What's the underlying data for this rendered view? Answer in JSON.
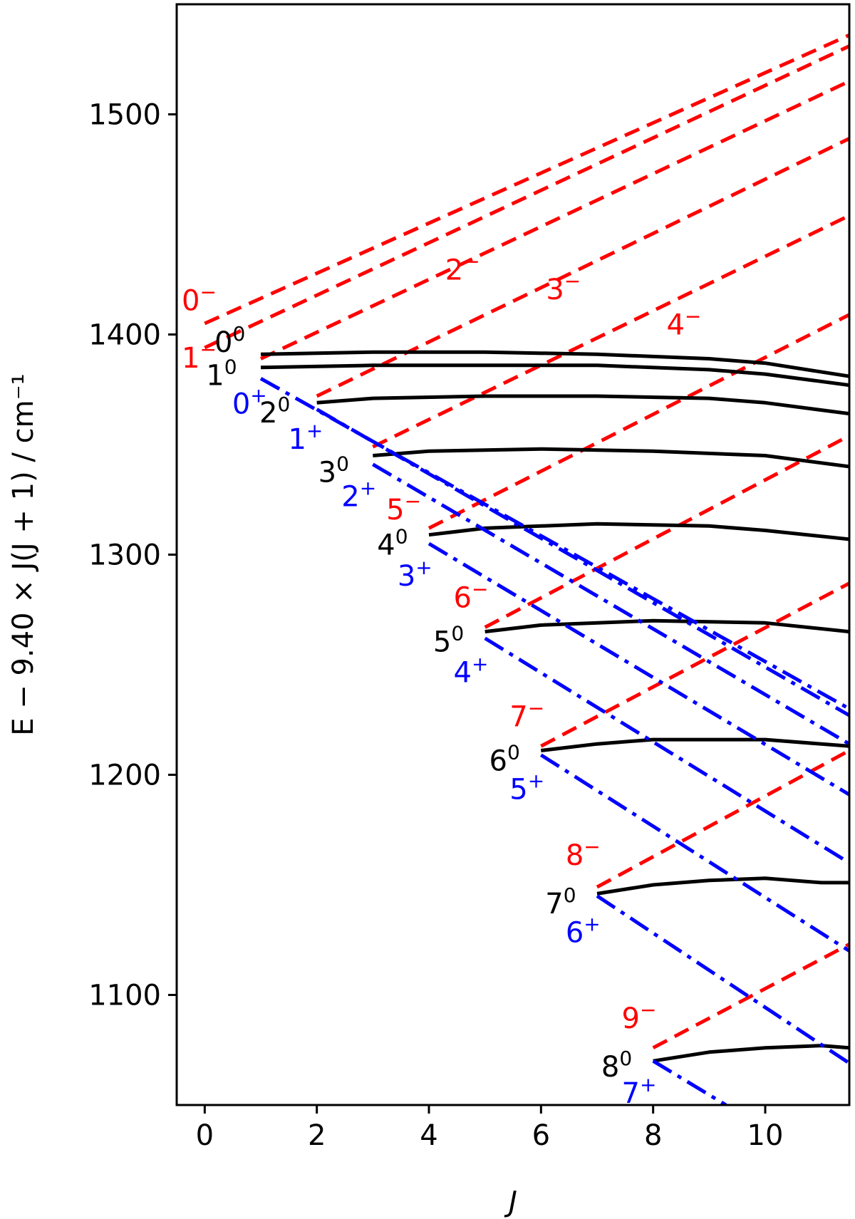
{
  "chart_data": {
    "type": "line",
    "xlabel": "J",
    "ylabel": "E − 9.40 × J(J + 1) / cm⁻¹",
    "xlim": [
      -0.5,
      11.5
    ],
    "ylim": [
      1050,
      1550
    ],
    "xticks": [
      0,
      2,
      4,
      6,
      8,
      10
    ],
    "yticks": [
      1100,
      1200,
      1300,
      1400,
      1500
    ],
    "x": [
      0,
      1,
      2,
      3,
      4,
      5,
      6,
      7,
      8,
      9,
      10,
      11,
      11.5
    ],
    "colors": {
      "zero": "#000000",
      "minus": "#ff0000",
      "plus": "#0000ff"
    },
    "series": [
      {
        "name": "0⁻",
        "family": "minus",
        "style": "dashed",
        "x": [
          0,
          11.5
        ],
        "y": [
          1405,
          1536
        ]
      },
      {
        "name": "1⁻",
        "family": "minus",
        "style": "dashed",
        "x": [
          0,
          11.5
        ],
        "y": [
          1394,
          1531
        ]
      },
      {
        "name": "2⁻",
        "family": "minus",
        "style": "dashed",
        "x": [
          1,
          11.5
        ],
        "y": [
          1389,
          1515
        ]
      },
      {
        "name": "3⁻",
        "family": "minus",
        "style": "dashed",
        "x": [
          2,
          11.5
        ],
        "y": [
          1372,
          1489
        ]
      },
      {
        "name": "4⁻",
        "family": "minus",
        "style": "dashed",
        "x": [
          3,
          11.5
        ],
        "y": [
          1349,
          1454
        ]
      },
      {
        "name": "5⁻",
        "family": "minus",
        "style": "dashed",
        "x": [
          4,
          11.5
        ],
        "y": [
          1312,
          1409
        ]
      },
      {
        "name": "6⁻",
        "family": "minus",
        "style": "dashed",
        "x": [
          5,
          11.5
        ],
        "y": [
          1267,
          1354
        ]
      },
      {
        "name": "7⁻",
        "family": "minus",
        "style": "dashed",
        "x": [
          6,
          11.5
        ],
        "y": [
          1213,
          1287
        ]
      },
      {
        "name": "8⁻",
        "family": "minus",
        "style": "dashed",
        "x": [
          7,
          11.5
        ],
        "y": [
          1149,
          1211
        ]
      },
      {
        "name": "9⁻",
        "family": "minus",
        "style": "dashed",
        "x": [
          8,
          11.5
        ],
        "y": [
          1076,
          1123
        ]
      },
      {
        "name": "0⁰",
        "family": "zero",
        "style": "solid",
        "x": [
          1,
          3,
          5,
          7,
          9,
          10,
          11.5
        ],
        "y": [
          1391,
          1392,
          1392,
          1391,
          1389,
          1387,
          1381
        ]
      },
      {
        "name": "1⁰",
        "family": "zero",
        "style": "solid",
        "x": [
          1,
          3,
          5,
          7,
          9,
          10,
          11.5
        ],
        "y": [
          1385,
          1386,
          1386,
          1386,
          1384,
          1382,
          1377
        ]
      },
      {
        "name": "2⁰",
        "family": "zero",
        "style": "solid",
        "x": [
          2,
          3,
          5,
          7,
          9,
          10,
          11.5
        ],
        "y": [
          1369,
          1371,
          1372,
          1372,
          1371,
          1369,
          1364
        ]
      },
      {
        "name": "3⁰",
        "family": "zero",
        "style": "solid",
        "x": [
          3,
          4,
          6,
          8,
          10,
          11.5
        ],
        "y": [
          1345,
          1347,
          1348,
          1347,
          1345,
          1340
        ]
      },
      {
        "name": "4⁰",
        "family": "zero",
        "style": "solid",
        "x": [
          4,
          5,
          7,
          9,
          10,
          11.5
        ],
        "y": [
          1309,
          1312,
          1314,
          1313,
          1311,
          1307
        ]
      },
      {
        "name": "5⁰",
        "family": "zero",
        "style": "solid",
        "x": [
          5,
          6,
          8,
          10,
          11.5
        ],
        "y": [
          1265,
          1268,
          1270,
          1269,
          1265
        ]
      },
      {
        "name": "6⁰",
        "family": "zero",
        "style": "solid",
        "x": [
          6,
          7,
          8,
          9,
          10,
          11.5
        ],
        "y": [
          1211,
          1214,
          1216,
          1216,
          1216,
          1213
        ]
      },
      {
        "name": "7⁰",
        "family": "zero",
        "style": "solid",
        "x": [
          7,
          8,
          9,
          10,
          11,
          11.5
        ],
        "y": [
          1146,
          1150,
          1152,
          1153,
          1151,
          1151
        ]
      },
      {
        "name": "8⁰",
        "family": "zero",
        "style": "solid",
        "x": [
          8,
          9,
          10,
          11,
          11.5
        ],
        "y": [
          1070,
          1074,
          1076,
          1077,
          1076
        ]
      },
      {
        "name": "0⁺",
        "family": "plus",
        "style": "dashdot",
        "x": [
          1,
          11.5
        ],
        "y": [
          1380,
          1230
        ]
      },
      {
        "name": "1⁺",
        "family": "plus",
        "style": "dashdot",
        "x": [
          2,
          11.5
        ],
        "y": [
          1366,
          1227
        ]
      },
      {
        "name": "2⁺",
        "family": "plus",
        "style": "dashdot",
        "x": [
          3,
          11.5
        ],
        "y": [
          1341,
          1214
        ]
      },
      {
        "name": "3⁺",
        "family": "plus",
        "style": "dashdot",
        "x": [
          4,
          11.5
        ],
        "y": [
          1305,
          1191
        ]
      },
      {
        "name": "4⁺",
        "family": "plus",
        "style": "dashdot",
        "x": [
          5,
          11.5
        ],
        "y": [
          1262,
          1160
        ]
      },
      {
        "name": "5⁺",
        "family": "plus",
        "style": "dashdot",
        "x": [
          6,
          11.5
        ],
        "y": [
          1209,
          1120
        ]
      },
      {
        "name": "6⁺",
        "family": "plus",
        "style": "dashdot",
        "x": [
          7,
          11.5
        ],
        "y": [
          1145,
          1069
        ]
      },
      {
        "name": "7⁺",
        "family": "plus",
        "style": "dashdot",
        "x": [
          8,
          9.3
        ],
        "y": [
          1070,
          1050
        ]
      }
    ],
    "labels": [
      {
        "base": "0",
        "sup": "−",
        "family": "minus",
        "at": [
          -0.1,
          1411
        ]
      },
      {
        "base": "1",
        "sup": "−",
        "family": "minus",
        "at": [
          -0.1,
          1385
        ]
      },
      {
        "base": "2",
        "sup": "−",
        "family": "minus",
        "at": [
          4.6,
          1425
        ]
      },
      {
        "base": "3",
        "sup": "−",
        "family": "minus",
        "at": [
          6.4,
          1416
        ]
      },
      {
        "base": "4",
        "sup": "−",
        "family": "minus",
        "at": [
          8.55,
          1400
        ]
      },
      {
        "base": "5",
        "sup": "−",
        "family": "minus",
        "at": [
          3.55,
          1316
        ]
      },
      {
        "base": "6",
        "sup": "−",
        "family": "minus",
        "at": [
          4.75,
          1276
        ]
      },
      {
        "base": "7",
        "sup": "−",
        "family": "minus",
        "at": [
          5.75,
          1222
        ]
      },
      {
        "base": "8",
        "sup": "−",
        "family": "minus",
        "at": [
          6.75,
          1159
        ]
      },
      {
        "base": "9",
        "sup": "−",
        "family": "minus",
        "at": [
          7.75,
          1085
        ]
      },
      {
        "base": "0",
        "sup": "0",
        "family": "zero",
        "at": [
          0.45,
          1392
        ]
      },
      {
        "base": "1",
        "sup": "0",
        "family": "zero",
        "at": [
          0.3,
          1377
        ]
      },
      {
        "base": "2",
        "sup": "0",
        "family": "zero",
        "at": [
          1.25,
          1360
        ]
      },
      {
        "base": "3",
        "sup": "0",
        "family": "zero",
        "at": [
          2.3,
          1333
        ]
      },
      {
        "base": "4",
        "sup": "0",
        "family": "zero",
        "at": [
          3.35,
          1300
        ]
      },
      {
        "base": "5",
        "sup": "0",
        "family": "zero",
        "at": [
          4.35,
          1256
        ]
      },
      {
        "base": "6",
        "sup": "0",
        "family": "zero",
        "at": [
          5.35,
          1202
        ]
      },
      {
        "base": "7",
        "sup": "0",
        "family": "zero",
        "at": [
          6.35,
          1137
        ]
      },
      {
        "base": "8",
        "sup": "0",
        "family": "zero",
        "at": [
          7.35,
          1063
        ]
      },
      {
        "base": "0",
        "sup": "+",
        "family": "plus",
        "at": [
          0.8,
          1364
        ]
      },
      {
        "base": "1",
        "sup": "+",
        "family": "plus",
        "at": [
          1.8,
          1348
        ]
      },
      {
        "base": "2",
        "sup": "+",
        "family": "plus",
        "at": [
          2.75,
          1322
        ]
      },
      {
        "base": "3",
        "sup": "+",
        "family": "plus",
        "at": [
          3.75,
          1286
        ]
      },
      {
        "base": "4",
        "sup": "+",
        "family": "plus",
        "at": [
          4.75,
          1242
        ]
      },
      {
        "base": "5",
        "sup": "+",
        "family": "plus",
        "at": [
          5.75,
          1189
        ]
      },
      {
        "base": "6",
        "sup": "+",
        "family": "plus",
        "at": [
          6.75,
          1124
        ]
      },
      {
        "base": "7",
        "sup": "+",
        "family": "plus",
        "at": [
          7.75,
          1051
        ]
      }
    ]
  }
}
